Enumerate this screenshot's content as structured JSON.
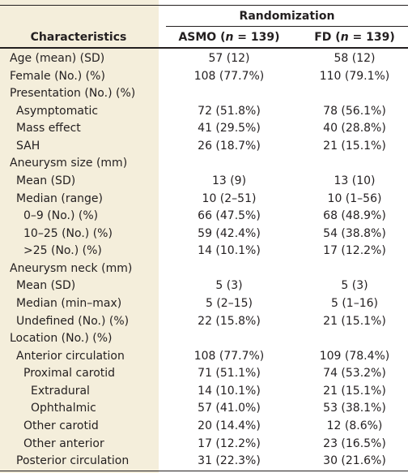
{
  "header": {
    "group": "Randomization",
    "columns": [
      "Characteristics",
      {
        "prefix": "ASMO (",
        "italic": "n",
        "suffix": " = 139)"
      },
      {
        "prefix": "FD (",
        "italic": "n",
        "suffix": " = 139)"
      }
    ]
  },
  "table": {
    "rows": [
      [
        "Age (mean) (SD)",
        "57 (12)",
        "58 (12)"
      ],
      [
        "Female (No.) (%)",
        "108 (77.7%)",
        "110 (79.1%)"
      ],
      [
        "Presentation (No.) (%)"
      ],
      [
        "Asymptomatic",
        "72 (51.8%)",
        "78 (56.1%)"
      ],
      [
        "Mass effect",
        "41 (29.5%)",
        "40 (28.8%)"
      ],
      [
        "SAH",
        "26 (18.7%)",
        "21 (15.1%)"
      ],
      [
        "Aneurysm size (mm)"
      ],
      [
        "Mean (SD)",
        "13 (9)",
        "13 (10)"
      ],
      [
        "Median (range)",
        "10 (2–51)",
        "10 (1–56)"
      ],
      [
        "0–9 (No.) (%)",
        "66 (47.5%)",
        "68 (48.9%)"
      ],
      [
        "10–25 (No.) (%)",
        "59 (42.4%)",
        "54 (38.8%)"
      ],
      [
        ">25 (No.) (%)",
        "14 (10.1%)",
        "17 (12.2%)"
      ],
      [
        "Aneurysm neck (mm)"
      ],
      [
        "Mean (SD)",
        "5 (3)",
        "5 (3)"
      ],
      [
        "Median (min–max)",
        "5 (2–15)",
        "5 (1–16)"
      ],
      [
        "Undefined (No.) (%)",
        "22 (15.8%)",
        "21 (15.1%)"
      ],
      [
        "Location (No.) (%)"
      ],
      [
        "Anterior circulation",
        "108 (77.7%)",
        "109 (78.4%)"
      ],
      [
        "Proximal carotid",
        "71 (51.1%)",
        "74 (53.2%)"
      ],
      [
        "Extradural",
        "14 (10.1%)",
        "21 (15.1%)"
      ],
      [
        "Ophthalmic",
        "57 (41.0%)",
        "53 (38.1%)"
      ],
      [
        "Other carotid",
        "20 (14.4%)",
        "12 (8.6%)"
      ],
      [
        "Other anterior",
        "17 (12.2%)",
        "23 (16.5%)"
      ],
      [
        "Posterior circulation",
        "31 (22.3%)",
        "30 (21.6%)"
      ]
    ]
  }
}
